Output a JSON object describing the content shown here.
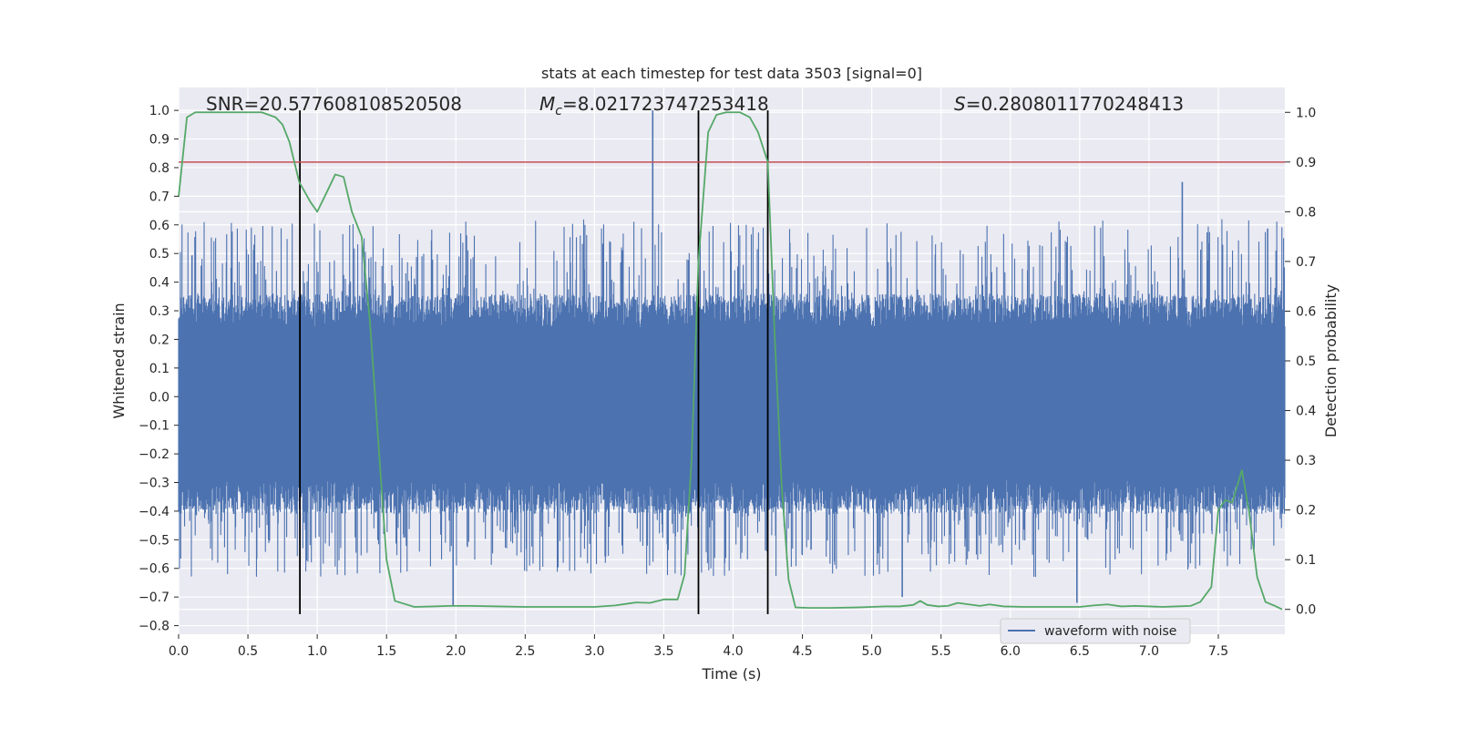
{
  "chart_data": {
    "type": "line",
    "title": "stats at each timestep for test data 3503 [signal=0]",
    "xlabel": "Time (s)",
    "ylabel_left": "Whitened strain",
    "ylabel_right": "Detection probability",
    "xlim": [
      0.0,
      7.98
    ],
    "ylim_left": [
      -0.83,
      1.08
    ],
    "ylim_right": [
      -0.05,
      1.05
    ],
    "x_ticks": [
      0.0,
      0.5,
      1.0,
      1.5,
      2.0,
      2.5,
      3.0,
      3.5,
      4.0,
      4.5,
      5.0,
      5.5,
      6.0,
      6.5,
      7.0,
      7.5
    ],
    "x_tick_labels": [
      "0.0",
      "0.5",
      "1.0",
      "1.5",
      "2.0",
      "2.5",
      "3.0",
      "3.5",
      "4.0",
      "4.5",
      "5.0",
      "5.5",
      "6.0",
      "6.5",
      "7.0",
      "7.5"
    ],
    "y_left_ticks": [
      1.0,
      0.9,
      0.8,
      0.7,
      0.6,
      0.5,
      0.4,
      0.3,
      0.2,
      0.1,
      0.0,
      -0.1,
      -0.2,
      -0.3,
      -0.4,
      -0.5,
      -0.6,
      -0.7,
      -0.8
    ],
    "y_left_tick_labels": [
      "1.0",
      "0.9",
      "0.8",
      "0.7",
      "0.6",
      "0.5",
      "0.4",
      "0.3",
      "0.2",
      "0.1",
      "0.0",
      "−0.1",
      "−0.2",
      "−0.3",
      "−0.4",
      "−0.5",
      "−0.6",
      "−0.7",
      "−0.8"
    ],
    "y_right_ticks": [
      1.0,
      0.9,
      0.8,
      0.7,
      0.6,
      0.5,
      0.4,
      0.3,
      0.2,
      0.1,
      0.0
    ],
    "y_right_tick_labels": [
      "1.0",
      "0.9",
      "0.8",
      "0.7",
      "0.6",
      "0.5",
      "0.4",
      "0.3",
      "0.2",
      "0.1",
      "0.0"
    ],
    "grid": true,
    "legend_position": "lower-right",
    "annotations": {
      "snr": "SNR=20.577608108520508",
      "mc_symbol": "M",
      "mc_subscript": "c",
      "mc_value": "=8.021723747253418",
      "s_symbol": "S",
      "s_value": "=0.2808011770248413"
    },
    "series": [
      {
        "name": "waveform with noise",
        "axis": "left",
        "color": "#4c72b0",
        "kind": "dense-noise",
        "band": [
          -0.35,
          0.3
        ],
        "spike_range": [
          -0.75,
          1.0
        ],
        "notable_peaks": [
          {
            "x": 3.42,
            "y": 1.0
          },
          {
            "x": 7.24,
            "y": 0.75
          },
          {
            "x": 1.98,
            "y": -0.73
          },
          {
            "x": 6.48,
            "y": -0.72
          },
          {
            "x": 5.22,
            "y": -0.7
          }
        ]
      },
      {
        "axis": "right",
        "color": "#55a868",
        "x": [
          0.0,
          0.06,
          0.12,
          0.2,
          0.3,
          0.4,
          0.5,
          0.6,
          0.7,
          0.75,
          0.8,
          0.87,
          0.95,
          1.0,
          1.07,
          1.13,
          1.19,
          1.25,
          1.32,
          1.38,
          1.45,
          1.5,
          1.56,
          1.7,
          1.85,
          1.95,
          2.1,
          2.3,
          2.5,
          2.8,
          3.0,
          3.15,
          3.25,
          3.3,
          3.4,
          3.5,
          3.6,
          3.65,
          3.7,
          3.75,
          3.82,
          3.88,
          3.95,
          4.05,
          4.12,
          4.18,
          4.25,
          4.3,
          4.35,
          4.4,
          4.45,
          4.55,
          4.7,
          4.9,
          5.0,
          5.1,
          5.2,
          5.3,
          5.35,
          5.4,
          5.48,
          5.55,
          5.62,
          5.7,
          5.78,
          5.85,
          5.95,
          6.1,
          6.3,
          6.5,
          6.6,
          6.7,
          6.8,
          6.9,
          7.0,
          7.1,
          7.2,
          7.3,
          7.37,
          7.45,
          7.5,
          7.55,
          7.6,
          7.67,
          7.72,
          7.78,
          7.84,
          7.9,
          7.96
        ],
        "values": [
          0.83,
          0.99,
          1.0,
          1.0,
          1.0,
          1.0,
          1.0,
          1.0,
          0.99,
          0.975,
          0.94,
          0.86,
          0.82,
          0.8,
          0.84,
          0.875,
          0.87,
          0.8,
          0.75,
          0.58,
          0.3,
          0.1,
          0.017,
          0.005,
          0.006,
          0.007,
          0.007,
          0.006,
          0.005,
          0.005,
          0.005,
          0.008,
          0.012,
          0.014,
          0.013,
          0.02,
          0.02,
          0.07,
          0.3,
          0.7,
          0.96,
          0.995,
          1.0,
          1.0,
          0.99,
          0.96,
          0.9,
          0.55,
          0.25,
          0.06,
          0.004,
          0.003,
          0.003,
          0.004,
          0.005,
          0.006,
          0.006,
          0.009,
          0.017,
          0.009,
          0.006,
          0.007,
          0.013,
          0.01,
          0.007,
          0.01,
          0.006,
          0.005,
          0.005,
          0.005,
          0.008,
          0.01,
          0.006,
          0.007,
          0.006,
          0.005,
          0.006,
          0.007,
          0.015,
          0.045,
          0.2,
          0.22,
          0.215,
          0.28,
          0.2,
          0.065,
          0.015,
          0.008,
          0.0
        ]
      },
      {
        "axis": "right",
        "color": "#c44e52",
        "kind": "horizontal-threshold",
        "value": 0.9
      }
    ],
    "vertical_markers": [
      {
        "x": 0.875,
        "color": "#000000"
      },
      {
        "x": 3.75,
        "color": "#000000"
      },
      {
        "x": 4.25,
        "color": "#000000"
      }
    ]
  }
}
